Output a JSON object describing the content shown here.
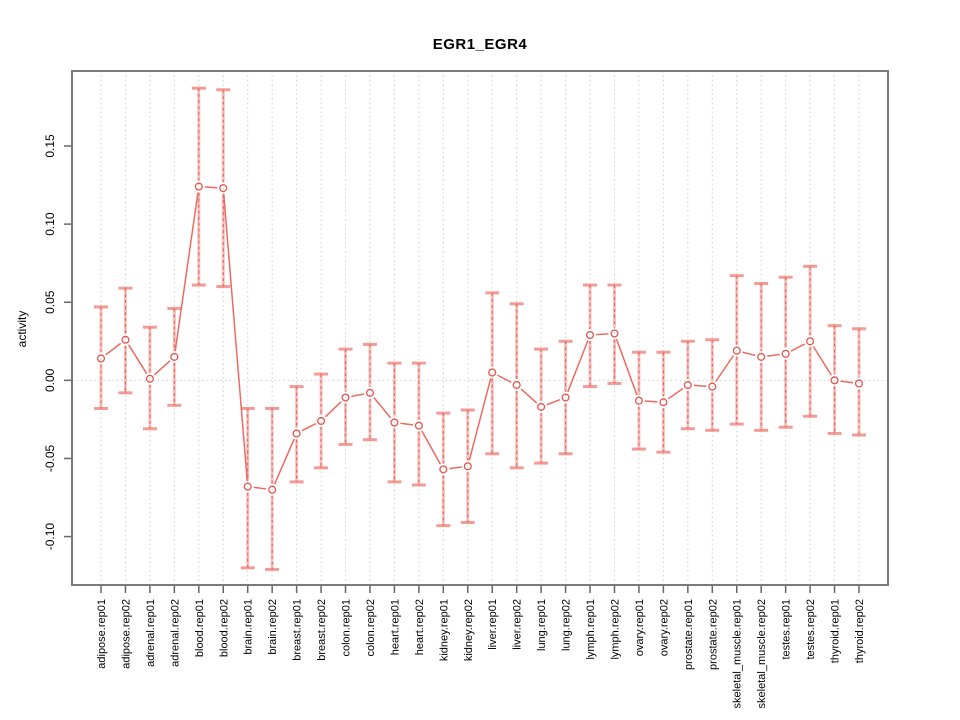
{
  "chart_data": {
    "type": "line",
    "title": "EGR1_EGR4",
    "xlabel": "",
    "ylabel": "activity",
    "categories": [
      "adipose.rep01",
      "adipose.rep02",
      "adrenal.rep01",
      "adrenal.rep02",
      "blood.rep01",
      "blood.rep02",
      "brain.rep01",
      "brain.rep02",
      "breast.rep01",
      "breast.rep02",
      "colon.rep01",
      "colon.rep02",
      "heart.rep01",
      "heart.rep02",
      "kidney.rep01",
      "kidney.rep02",
      "liver.rep01",
      "liver.rep02",
      "lung.rep01",
      "lung.rep02",
      "lymph.rep01",
      "lymph.rep02",
      "ovary.rep01",
      "ovary.rep02",
      "prostate.rep01",
      "prostate.rep02",
      "skeletal_muscle.rep01",
      "skeletal_muscle.rep02",
      "testes.rep01",
      "testes.rep02",
      "thyroid.rep01",
      "thyroid.rep02"
    ],
    "series": [
      {
        "name": "activity",
        "values": [
          0.014,
          0.026,
          0.001,
          0.015,
          0.124,
          0.123,
          -0.068,
          -0.07,
          -0.034,
          -0.026,
          -0.011,
          -0.008,
          -0.027,
          -0.029,
          -0.057,
          -0.055,
          0.005,
          -0.003,
          -0.017,
          -0.011,
          0.029,
          0.03,
          -0.013,
          -0.014,
          -0.003,
          -0.004,
          0.019,
          0.015,
          0.017,
          0.025,
          0.0,
          -0.002
        ],
        "ci_low": [
          -0.018,
          -0.008,
          -0.031,
          -0.016,
          0.061,
          0.06,
          -0.12,
          -0.121,
          -0.065,
          -0.056,
          -0.041,
          -0.038,
          -0.065,
          -0.067,
          -0.093,
          -0.091,
          -0.047,
          -0.056,
          -0.053,
          -0.047,
          -0.004,
          -0.002,
          -0.044,
          -0.046,
          -0.031,
          -0.032,
          -0.028,
          -0.032,
          -0.03,
          -0.023,
          -0.034,
          -0.035
        ],
        "ci_high": [
          0.047,
          0.059,
          0.034,
          0.046,
          0.187,
          0.186,
          -0.018,
          -0.018,
          -0.004,
          0.004,
          0.02,
          0.023,
          0.011,
          0.011,
          -0.021,
          -0.019,
          0.056,
          0.049,
          0.02,
          0.025,
          0.061,
          0.061,
          0.018,
          0.018,
          0.025,
          0.026,
          0.067,
          0.062,
          0.066,
          0.073,
          0.035,
          0.033
        ]
      }
    ],
    "ylim": [
      -0.131,
      0.198
    ],
    "yticks": [
      -0.1,
      -0.05,
      0.0,
      0.05,
      0.1,
      0.15
    ],
    "ytick_labels": [
      "-0.10",
      "-0.05",
      "0.00",
      "0.05",
      "0.10",
      "0.15"
    ],
    "grid": "vertical dotted gridline at each category, horizontal dotted line at y=0",
    "legend": "none",
    "colors": {
      "point": "#e6554d",
      "line": "#ee6a60",
      "errorbar": "#f07a72",
      "errorbar_dash": "#e85c52",
      "grid": "#cfcfcf",
      "frame": "#7a7a7a",
      "tick": "#666666",
      "text": "#000000"
    }
  }
}
